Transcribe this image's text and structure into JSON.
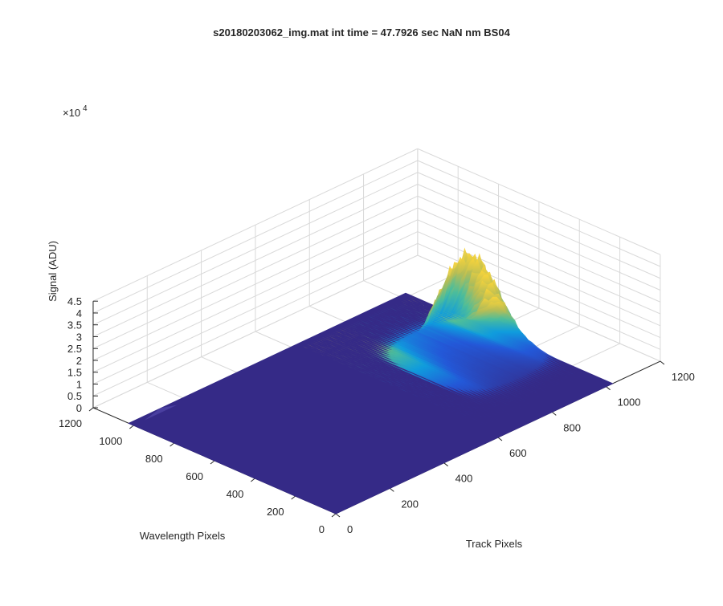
{
  "chart_data": {
    "type": "surface",
    "title": "s20180203062_img.mat int time = 47.7926 sec  NaN nm BS04",
    "xlabel": "Track Pixels",
    "ylabel": "Wavelength Pixels",
    "zlabel": "Signal (ADU)",
    "z_exponent_label": "×10",
    "z_exponent_power": "4",
    "xlim": [
      0,
      1200
    ],
    "ylim": [
      0,
      1200
    ],
    "zlim": [
      0,
      45000
    ],
    "x_ticks": [
      "0",
      "200",
      "400",
      "600",
      "800",
      "1000",
      "1200"
    ],
    "y_ticks": [
      "0",
      "200",
      "400",
      "600",
      "800",
      "1000",
      "1200"
    ],
    "z_ticks": [
      "0",
      "0.5",
      "1",
      "1.5",
      "2",
      "2.5",
      "3",
      "3.5",
      "4",
      "4.5"
    ],
    "grid": true,
    "colormap": "parula",
    "colors": {
      "low": "#352a87",
      "mid": "#0f9cdd",
      "high": "#f9d43a"
    },
    "surface_extent": {
      "x": [
        0,
        1024
      ],
      "y": [
        0,
        1024
      ]
    },
    "baseline_signal": 0,
    "peak": {
      "x_range": [
        700,
        1024
      ],
      "y_center": 520,
      "max_signal": 42000
    },
    "secondary_bump": {
      "x": 100,
      "y": 1000,
      "signal": 2000
    }
  }
}
